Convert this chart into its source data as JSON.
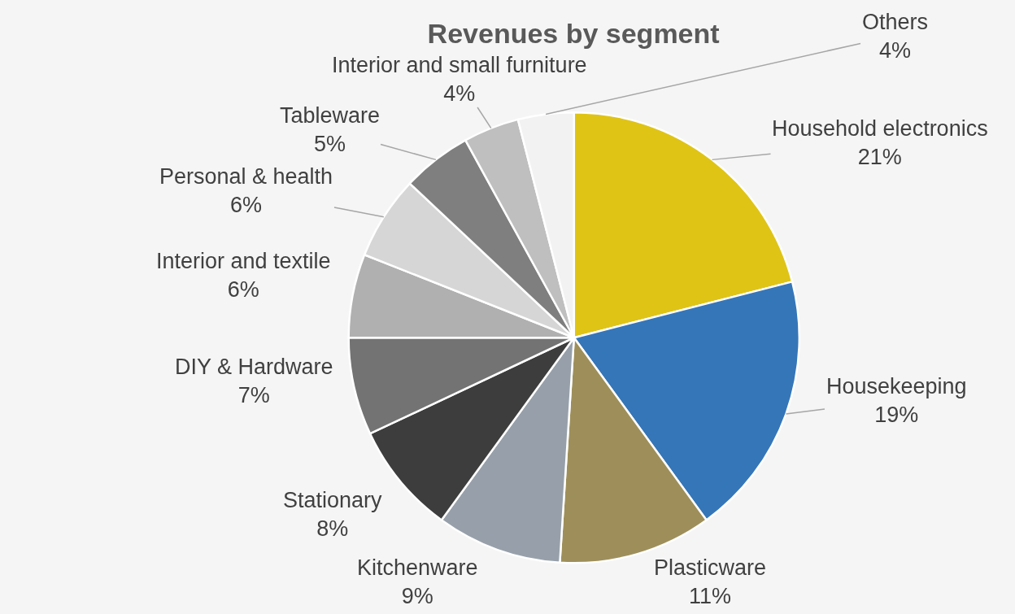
{
  "chart_data": {
    "type": "pie",
    "title": "Revenues by segment",
    "categories": [
      "Household electronics",
      "Housekeeping",
      "Plasticware",
      "Kitchenware",
      "Stationary",
      "DIY & Hardware",
      "Interior and textile",
      "Personal & health",
      "Tableware",
      "Interior and small furniture",
      "Others"
    ],
    "values": [
      21,
      19,
      11,
      9,
      8,
      7,
      6,
      6,
      5,
      4,
      4
    ],
    "value_labels": [
      "21%",
      "19%",
      "11%",
      "9%",
      "8%",
      "7%",
      "6%",
      "6%",
      "5%",
      "4%",
      "4%"
    ],
    "colors": [
      "#dfc416",
      "#3576b8",
      "#9e8f5a",
      "#97a0aa",
      "#3d3d3d",
      "#737373",
      "#b0b0b0",
      "#d6d6d6",
      "#7f7f7f",
      "#bfbfbf",
      "#f2f2f2"
    ],
    "legend": false
  }
}
